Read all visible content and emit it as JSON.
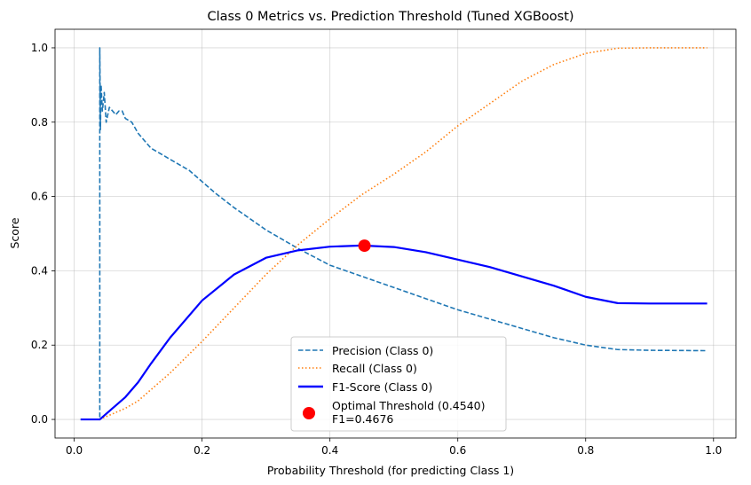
{
  "chart_data": {
    "type": "line",
    "title": "Class 0 Metrics vs. Prediction Threshold (Tuned XGBoost)",
    "xlabel": "Probability Threshold (for predicting Class 1)",
    "ylabel": "Score",
    "xlim": [
      -0.03,
      1.035
    ],
    "ylim": [
      -0.05,
      1.05
    ],
    "grid": true,
    "legend_position": "lower-center",
    "x_ticks": [
      {
        "value": 0.0,
        "label": "0.0"
      },
      {
        "value": 0.2,
        "label": "0.2"
      },
      {
        "value": 0.4,
        "label": "0.4"
      },
      {
        "value": 0.6,
        "label": "0.6"
      },
      {
        "value": 0.8,
        "label": "0.8"
      },
      {
        "value": 1.0,
        "label": "1.0"
      }
    ],
    "y_ticks": [
      {
        "value": 0.0,
        "label": "0.0"
      },
      {
        "value": 0.2,
        "label": "0.2"
      },
      {
        "value": 0.4,
        "label": "0.4"
      },
      {
        "value": 0.6,
        "label": "0.6"
      },
      {
        "value": 0.8,
        "label": "0.8"
      },
      {
        "value": 1.0,
        "label": "1.0"
      }
    ],
    "series": [
      {
        "name": "Precision (Class 0)",
        "color": "#1f77b4",
        "style": "dashed",
        "points": [
          [
            0.01,
            0.0
          ],
          [
            0.04,
            0.0
          ],
          [
            0.04,
            1.0
          ],
          [
            0.041,
            0.78
          ],
          [
            0.042,
            0.9
          ],
          [
            0.044,
            0.83
          ],
          [
            0.047,
            0.88
          ],
          [
            0.05,
            0.8
          ],
          [
            0.055,
            0.84
          ],
          [
            0.06,
            0.83
          ],
          [
            0.065,
            0.82
          ],
          [
            0.07,
            0.83
          ],
          [
            0.075,
            0.83
          ],
          [
            0.08,
            0.81
          ],
          [
            0.09,
            0.8
          ],
          [
            0.1,
            0.77
          ],
          [
            0.11,
            0.75
          ],
          [
            0.12,
            0.73
          ],
          [
            0.13,
            0.72
          ],
          [
            0.14,
            0.71
          ],
          [
            0.15,
            0.7
          ],
          [
            0.16,
            0.69
          ],
          [
            0.18,
            0.67
          ],
          [
            0.2,
            0.64
          ],
          [
            0.22,
            0.61
          ],
          [
            0.25,
            0.57
          ],
          [
            0.3,
            0.51
          ],
          [
            0.35,
            0.46
          ],
          [
            0.4,
            0.415
          ],
          [
            0.45,
            0.385
          ],
          [
            0.5,
            0.355
          ],
          [
            0.55,
            0.325
          ],
          [
            0.6,
            0.295
          ],
          [
            0.65,
            0.27
          ],
          [
            0.7,
            0.245
          ],
          [
            0.75,
            0.22
          ],
          [
            0.8,
            0.2
          ],
          [
            0.85,
            0.188
          ],
          [
            0.9,
            0.186
          ],
          [
            0.99,
            0.185
          ]
        ]
      },
      {
        "name": "Recall (Class 0)",
        "color": "#ff7f0e",
        "style": "dotted",
        "points": [
          [
            0.04,
            0.0
          ],
          [
            0.06,
            0.015
          ],
          [
            0.08,
            0.03
          ],
          [
            0.1,
            0.05
          ],
          [
            0.12,
            0.08
          ],
          [
            0.15,
            0.125
          ],
          [
            0.2,
            0.21
          ],
          [
            0.25,
            0.3
          ],
          [
            0.3,
            0.39
          ],
          [
            0.35,
            0.47
          ],
          [
            0.4,
            0.54
          ],
          [
            0.45,
            0.605
          ],
          [
            0.5,
            0.66
          ],
          [
            0.55,
            0.72
          ],
          [
            0.6,
            0.79
          ],
          [
            0.65,
            0.85
          ],
          [
            0.7,
            0.91
          ],
          [
            0.75,
            0.955
          ],
          [
            0.8,
            0.985
          ],
          [
            0.85,
            0.999
          ],
          [
            0.9,
            1.0
          ],
          [
            0.99,
            1.0
          ]
        ]
      },
      {
        "name": "F1-Score (Class 0)",
        "color": "#0000ff",
        "style": "solid",
        "points": [
          [
            0.01,
            0.0
          ],
          [
            0.04,
            0.0
          ],
          [
            0.06,
            0.03
          ],
          [
            0.08,
            0.06
          ],
          [
            0.1,
            0.1
          ],
          [
            0.12,
            0.15
          ],
          [
            0.15,
            0.22
          ],
          [
            0.2,
            0.32
          ],
          [
            0.25,
            0.39
          ],
          [
            0.3,
            0.435
          ],
          [
            0.35,
            0.455
          ],
          [
            0.4,
            0.465
          ],
          [
            0.45,
            0.468
          ],
          [
            0.5,
            0.464
          ],
          [
            0.55,
            0.45
          ],
          [
            0.6,
            0.43
          ],
          [
            0.65,
            0.41
          ],
          [
            0.7,
            0.385
          ],
          [
            0.75,
            0.36
          ],
          [
            0.8,
            0.33
          ],
          [
            0.85,
            0.313
          ],
          [
            0.9,
            0.312
          ],
          [
            0.99,
            0.312
          ]
        ]
      }
    ],
    "optimal_point": {
      "name": "Optimal Threshold (0.4540)",
      "name_line2": "F1=0.4676",
      "x": 0.454,
      "y": 0.4676,
      "color": "#ff0000"
    }
  }
}
